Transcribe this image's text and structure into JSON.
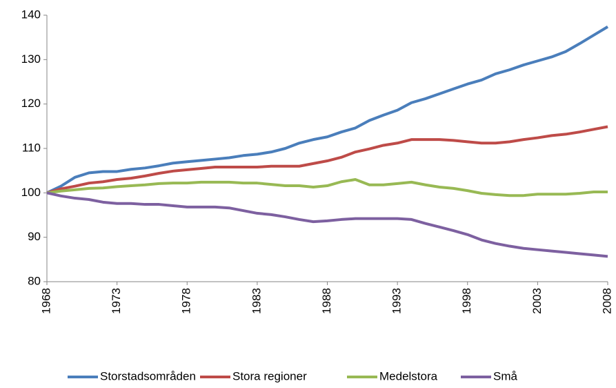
{
  "chart_data": {
    "type": "line",
    "x": [
      1968,
      1969,
      1970,
      1971,
      1972,
      1973,
      1974,
      1975,
      1976,
      1977,
      1978,
      1979,
      1980,
      1981,
      1982,
      1983,
      1984,
      1985,
      1986,
      1987,
      1988,
      1989,
      1990,
      1991,
      1992,
      1993,
      1994,
      1995,
      1996,
      1997,
      1998,
      1999,
      2000,
      2001,
      2002,
      2003,
      2004,
      2005,
      2006,
      2007,
      2008
    ],
    "series": [
      {
        "name": "Storstadsområden",
        "color": "#4a7ebb",
        "values": [
          100,
          101.5,
          103.5,
          104.5,
          104.8,
          104.8,
          105.3,
          105.6,
          106.1,
          106.7,
          107,
          107.3,
          107.6,
          107.9,
          108.4,
          108.7,
          109.2,
          110,
          111.2,
          112,
          112.6,
          113.7,
          114.6,
          116.3,
          117.5,
          118.6,
          120.3,
          121.2,
          122.3,
          123.4,
          124.5,
          125.4,
          126.8,
          127.7,
          128.8,
          129.7,
          130.6,
          131.8,
          133.6,
          135.5,
          137.4
        ]
      },
      {
        "name": "Stora regioner",
        "color": "#be4b48",
        "values": [
          100,
          100.9,
          101.5,
          102.2,
          102.5,
          103,
          103.3,
          103.8,
          104.4,
          104.9,
          105.2,
          105.5,
          105.8,
          105.8,
          105.8,
          105.8,
          106,
          106,
          106,
          106.6,
          107.2,
          108,
          109.2,
          109.9,
          110.7,
          111.2,
          112,
          112,
          112,
          111.8,
          111.5,
          111.2,
          111.2,
          111.5,
          112,
          112.4,
          112.9,
          113.2,
          113.7,
          114.3,
          114.9
        ]
      },
      {
        "name": "Medelstora",
        "color": "#98b954",
        "values": [
          100,
          100.4,
          100.7,
          101,
          101.1,
          101.4,
          101.6,
          101.8,
          102.1,
          102.2,
          102.2,
          102.4,
          102.4,
          102.4,
          102.2,
          102.2,
          101.9,
          101.6,
          101.6,
          101.3,
          101.6,
          102.5,
          103,
          101.8,
          101.8,
          102.1,
          102.4,
          101.8,
          101.3,
          101,
          100.5,
          99.9,
          99.6,
          99.4,
          99.4,
          99.7,
          99.7,
          99.7,
          99.9,
          100.2,
          100.2
        ]
      },
      {
        "name": "Små",
        "color": "#7d60a0",
        "values": [
          100,
          99.3,
          98.8,
          98.5,
          97.9,
          97.6,
          97.6,
          97.4,
          97.4,
          97.1,
          96.8,
          96.8,
          96.8,
          96.6,
          96,
          95.4,
          95.1,
          94.6,
          94,
          93.5,
          93.7,
          94,
          94.2,
          94.2,
          94.2,
          94.2,
          94,
          93.1,
          92.3,
          91.5,
          90.6,
          89.4,
          88.6,
          88,
          87.5,
          87.2,
          86.9,
          86.6,
          86.3,
          86,
          85.7
        ]
      }
    ],
    "xlim": [
      1968,
      2008
    ],
    "xticks": [
      1968,
      1973,
      1978,
      1983,
      1988,
      1993,
      1998,
      2003,
      2008
    ],
    "ylim": [
      80,
      140
    ],
    "yticks": [
      80,
      90,
      100,
      110,
      120,
      130,
      140
    ],
    "legend": "bottom"
  }
}
